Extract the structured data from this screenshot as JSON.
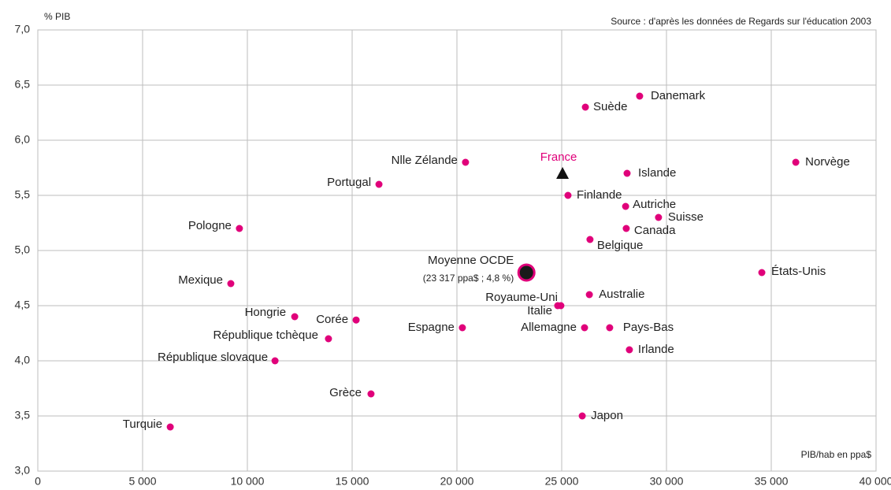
{
  "chart_data": {
    "type": "scatter",
    "y_axis_label": "% PIB",
    "x_axis_label": "PIB/hab en ppa$",
    "source": "Source : d'après les données de Regards sur l'éducation 2003",
    "color": "#e0007a",
    "grid": true,
    "xlim": [
      0,
      40000
    ],
    "ylim": [
      3.0,
      7.0
    ],
    "xticks": [
      0,
      {
        "value": 5000,
        "label": "5 000"
      },
      {
        "value": 10000,
        "label": "10 000"
      },
      {
        "value": 15000,
        "label": "15 000"
      },
      {
        "value": 20000,
        "label": "20 000"
      },
      {
        "value": 25000,
        "label": "25 000"
      },
      {
        "value": 30000,
        "label": "30 000"
      },
      {
        "value": 35000,
        "label": "35 000"
      },
      {
        "value": 40000,
        "label": "40 000"
      }
    ],
    "yticks": [
      {
        "value": 3.0,
        "label": "3,0"
      },
      {
        "value": 3.5,
        "label": "3,5"
      },
      {
        "value": 4.0,
        "label": "4,0"
      },
      {
        "value": 4.5,
        "label": "4,5"
      },
      {
        "value": 5.0,
        "label": "5,0"
      },
      {
        "value": 5.5,
        "label": "5,5"
      },
      {
        "value": 6.0,
        "label": "6,0"
      },
      {
        "value": 6.5,
        "label": "6,5"
      },
      {
        "value": 7.0,
        "label": "7,0"
      }
    ],
    "points": [
      {
        "name": "Danemark",
        "x": 28720,
        "y": 6.4
      },
      {
        "name": "Suède",
        "x": 26130,
        "y": 6.3
      },
      {
        "name": "Norvège",
        "x": 36170,
        "y": 5.8
      },
      {
        "name": "Nlle Zélande",
        "x": 20410,
        "y": 5.8
      },
      {
        "name": "Islande",
        "x": 28120,
        "y": 5.7
      },
      {
        "name": "Portugal",
        "x": 16280,
        "y": 5.6
      },
      {
        "name": "Finlande",
        "x": 25300,
        "y": 5.5
      },
      {
        "name": "Autriche",
        "x": 28050,
        "y": 5.4
      },
      {
        "name": "Suisse",
        "x": 29620,
        "y": 5.3
      },
      {
        "name": "Pologne",
        "x": 9620,
        "y": 5.2
      },
      {
        "name": "Canada",
        "x": 28080,
        "y": 5.2
      },
      {
        "name": "Belgique",
        "x": 26350,
        "y": 5.1
      },
      {
        "name": "États-Unis",
        "x": 34550,
        "y": 4.8
      },
      {
        "name": "Mexique",
        "x": 9210,
        "y": 4.7
      },
      {
        "name": "Australie",
        "x": 26320,
        "y": 4.6
      },
      {
        "name": "Royaume-Uni",
        "x": 24960,
        "y": 4.5
      },
      {
        "name": "Italie",
        "x": 24810,
        "y": 4.5
      },
      {
        "name": "Hongrie",
        "x": 12260,
        "y": 4.4
      },
      {
        "name": "Corée",
        "x": 15190,
        "y": 4.37
      },
      {
        "name": "Espagne",
        "x": 20260,
        "y": 4.3
      },
      {
        "name": "Allemagne",
        "x": 26090,
        "y": 4.3
      },
      {
        "name": "Pays-Bas",
        "x": 27290,
        "y": 4.3
      },
      {
        "name": "République tchèque",
        "x": 13870,
        "y": 4.2
      },
      {
        "name": "Irlande",
        "x": 28230,
        "y": 4.1
      },
      {
        "name": "République slovaque",
        "x": 11320,
        "y": 4.0
      },
      {
        "name": "Grèce",
        "x": 15900,
        "y": 3.7
      },
      {
        "name": "Japon",
        "x": 25980,
        "y": 3.5
      },
      {
        "name": "Turquie",
        "x": 6320,
        "y": 3.4
      }
    ],
    "mean": {
      "name": "Moyenne OCDE",
      "note": "(23 317 ppa$ ; 4,8 %)",
      "x": 23317,
      "y": 4.8
    },
    "highlight": {
      "name": "France",
      "x": 25040,
      "y": 5.7,
      "color": "#e0007a"
    }
  }
}
